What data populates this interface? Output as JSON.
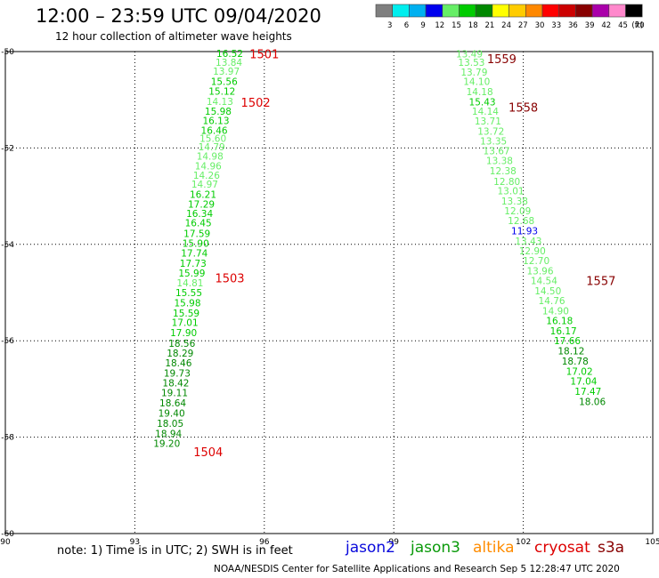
{
  "title": "12:00 – 23:59 UTC 09/04/2020",
  "subtitle": "12 hour collection of altimeter wave heights",
  "note": "note: 1) Time is in UTC; 2) SWH is in feet",
  "missions": [
    {
      "name": "jason2",
      "color": "#0a0adc"
    },
    {
      "name": "jason3",
      "color": "#0a9a0a"
    },
    {
      "name": "altika",
      "color": "#ff8c00"
    },
    {
      "name": "cryosat",
      "color": "#dd0000"
    },
    {
      "name": "s3a",
      "color": "#880000"
    }
  ],
  "footer": "NOAA/NESDIS Center for Satellite Applications and Research    Sep  5 12:28:47 UTC 2020",
  "color_scale": {
    "unit": "(ft)",
    "labels": [
      "3",
      "6",
      "9",
      "12",
      "15",
      "18",
      "21",
      "24",
      "27",
      "30",
      "33",
      "36",
      "39",
      "42",
      "45",
      "70"
    ],
    "colors": [
      "#7f7f7f",
      "#00eeee",
      "#00b0f0",
      "#0000ee",
      "#66ee66",
      "#00cc00",
      "#008800",
      "#ffff00",
      "#ffcc00",
      "#ff8800",
      "#ff0000",
      "#cc0000",
      "#880000",
      "#aa00aa",
      "#ff88cc",
      "#000000"
    ]
  },
  "chart_data": {
    "type": "scatter",
    "xlim": [
      90,
      105
    ],
    "ylim": [
      -60,
      -50
    ],
    "xticks": [
      "90",
      "93",
      "96",
      "99",
      "102",
      "105"
    ],
    "yticks": [
      "-50",
      "-52",
      "-54",
      "-56",
      "-58",
      "-60"
    ],
    "grid": true,
    "track_labels": [
      {
        "text": "1501",
        "lon": 96.0,
        "lat": -50.05,
        "color": "#dd0000"
      },
      {
        "text": "1502",
        "lon": 95.8,
        "lat": -51.05,
        "color": "#dd0000"
      },
      {
        "text": "1503",
        "lon": 95.2,
        "lat": -54.7,
        "color": "#dd0000"
      },
      {
        "text": "1504",
        "lon": 94.7,
        "lat": -58.3,
        "color": "#dd0000"
      },
      {
        "text": "1559",
        "lon": 101.5,
        "lat": -50.15,
        "color": "#880000"
      },
      {
        "text": "1558",
        "lon": 102.0,
        "lat": -51.15,
        "color": "#880000"
      },
      {
        "text": "1557",
        "lon": 103.8,
        "lat": -54.75,
        "color": "#880000"
      }
    ],
    "series": [
      {
        "name": "jason3",
        "points": [
          {
            "lon": 95.2,
            "lat": -50.04,
            "swh": "16.52",
            "color": "#00cc00"
          },
          {
            "lon": 95.18,
            "lat": -50.22,
            "swh": "13.84",
            "color": "#66ee66"
          },
          {
            "lon": 95.12,
            "lat": -50.41,
            "swh": "13.97",
            "color": "#66ee66"
          },
          {
            "lon": 95.07,
            "lat": -50.62,
            "swh": "15.56",
            "color": "#00cc00"
          },
          {
            "lon": 95.02,
            "lat": -50.82,
            "swh": "15.12",
            "color": "#00cc00"
          },
          {
            "lon": 94.97,
            "lat": -51.03,
            "swh": "14.13",
            "color": "#66ee66"
          },
          {
            "lon": 94.93,
            "lat": -51.24,
            "swh": "15.98",
            "color": "#00cc00"
          },
          {
            "lon": 94.88,
            "lat": -51.43,
            "swh": "16.13",
            "color": "#00cc00"
          },
          {
            "lon": 94.84,
            "lat": -51.63,
            "swh": "16.46",
            "color": "#00cc00"
          },
          {
            "lon": 94.81,
            "lat": -51.8,
            "swh": "15.60",
            "color": "#66ee66"
          },
          {
            "lon": 94.78,
            "lat": -51.97,
            "swh": "14.79",
            "color": "#66ee66"
          },
          {
            "lon": 94.74,
            "lat": -52.17,
            "swh": "14.98",
            "color": "#66ee66"
          },
          {
            "lon": 94.7,
            "lat": -52.37,
            "swh": "14.96",
            "color": "#66ee66"
          },
          {
            "lon": 94.66,
            "lat": -52.56,
            "swh": "14.26",
            "color": "#66ee66"
          },
          {
            "lon": 94.62,
            "lat": -52.75,
            "swh": "14.97",
            "color": "#66ee66"
          },
          {
            "lon": 94.58,
            "lat": -52.96,
            "swh": "16.21",
            "color": "#00cc00"
          },
          {
            "lon": 94.54,
            "lat": -53.16,
            "swh": "17.29",
            "color": "#00cc00"
          },
          {
            "lon": 94.5,
            "lat": -53.36,
            "swh": "16.34",
            "color": "#00cc00"
          },
          {
            "lon": 94.47,
            "lat": -53.55,
            "swh": "16.45",
            "color": "#00cc00"
          },
          {
            "lon": 94.44,
            "lat": -53.77,
            "swh": "17.59",
            "color": "#00cc00"
          },
          {
            "lon": 94.41,
            "lat": -53.98,
            "swh": "15.90",
            "color": "#00cc00"
          },
          {
            "lon": 94.38,
            "lat": -54.18,
            "swh": "17.74",
            "color": "#00cc00"
          },
          {
            "lon": 94.35,
            "lat": -54.39,
            "swh": "17.73",
            "color": "#00cc00"
          },
          {
            "lon": 94.32,
            "lat": -54.59,
            "swh": "15.99",
            "color": "#00cc00"
          },
          {
            "lon": 94.28,
            "lat": -54.8,
            "swh": "14.81",
            "color": "#66ee66"
          },
          {
            "lon": 94.25,
            "lat": -55.0,
            "swh": "15.55",
            "color": "#00cc00"
          },
          {
            "lon": 94.22,
            "lat": -55.21,
            "swh": "15.98",
            "color": "#00cc00"
          },
          {
            "lon": 94.19,
            "lat": -55.42,
            "swh": "15.59",
            "color": "#00cc00"
          },
          {
            "lon": 94.16,
            "lat": -55.62,
            "swh": "17.01",
            "color": "#00cc00"
          },
          {
            "lon": 94.13,
            "lat": -55.83,
            "swh": "17.90",
            "color": "#00cc00"
          },
          {
            "lon": 94.09,
            "lat": -56.05,
            "swh": "18.56",
            "color": "#008800"
          },
          {
            "lon": 94.05,
            "lat": -56.25,
            "swh": "18.29",
            "color": "#008800"
          },
          {
            "lon": 94.01,
            "lat": -56.46,
            "swh": "18.46",
            "color": "#008800"
          },
          {
            "lon": 93.98,
            "lat": -56.67,
            "swh": "19.73",
            "color": "#008800"
          },
          {
            "lon": 93.95,
            "lat": -56.87,
            "swh": "18.42",
            "color": "#008800"
          },
          {
            "lon": 93.92,
            "lat": -57.08,
            "swh": "19.11",
            "color": "#008800"
          },
          {
            "lon": 93.88,
            "lat": -57.29,
            "swh": "18.64",
            "color": "#008800"
          },
          {
            "lon": 93.85,
            "lat": -57.5,
            "swh": "19.40",
            "color": "#008800"
          },
          {
            "lon": 93.82,
            "lat": -57.71,
            "swh": "18.05",
            "color": "#008800"
          },
          {
            "lon": 93.78,
            "lat": -57.92,
            "swh": "18.94",
            "color": "#008800"
          },
          {
            "lon": 93.74,
            "lat": -58.13,
            "swh": "19.20",
            "color": "#008800"
          }
        ]
      },
      {
        "name": "jason3",
        "points": [
          {
            "lon": 100.75,
            "lat": -50.05,
            "swh": "13.49",
            "color": "#66ee66"
          },
          {
            "lon": 100.8,
            "lat": -50.22,
            "swh": "13.53",
            "color": "#66ee66"
          },
          {
            "lon": 100.86,
            "lat": -50.42,
            "swh": "13.79",
            "color": "#66ee66"
          },
          {
            "lon": 100.92,
            "lat": -50.62,
            "swh": "14.10",
            "color": "#66ee66"
          },
          {
            "lon": 100.99,
            "lat": -50.83,
            "swh": "14.18",
            "color": "#66ee66"
          },
          {
            "lon": 101.05,
            "lat": -51.04,
            "swh": "15.43",
            "color": "#00cc00"
          },
          {
            "lon": 101.12,
            "lat": -51.24,
            "swh": "14.14",
            "color": "#66ee66"
          },
          {
            "lon": 101.18,
            "lat": -51.44,
            "swh": "13.71",
            "color": "#66ee66"
          },
          {
            "lon": 101.25,
            "lat": -51.65,
            "swh": "13.72",
            "color": "#66ee66"
          },
          {
            "lon": 101.31,
            "lat": -51.85,
            "swh": "13.35",
            "color": "#66ee66"
          },
          {
            "lon": 101.38,
            "lat": -52.06,
            "swh": "13.67",
            "color": "#66ee66"
          },
          {
            "lon": 101.45,
            "lat": -52.26,
            "swh": "13.38",
            "color": "#66ee66"
          },
          {
            "lon": 101.53,
            "lat": -52.47,
            "swh": "12.38",
            "color": "#66ee66"
          },
          {
            "lon": 101.62,
            "lat": -52.69,
            "swh": "12.80",
            "color": "#66ee66"
          },
          {
            "lon": 101.71,
            "lat": -52.89,
            "swh": "13.01",
            "color": "#66ee66"
          },
          {
            "lon": 101.8,
            "lat": -53.1,
            "swh": "13.38",
            "color": "#66ee66"
          },
          {
            "lon": 101.87,
            "lat": -53.3,
            "swh": "12.09",
            "color": "#66ee66"
          },
          {
            "lon": 101.95,
            "lat": -53.51,
            "swh": "12.68",
            "color": "#66ee66"
          },
          {
            "lon": 102.03,
            "lat": -53.72,
            "swh": "11.93",
            "color": "#0000ee"
          },
          {
            "lon": 102.12,
            "lat": -53.93,
            "swh": "13.43",
            "color": "#66ee66"
          },
          {
            "lon": 102.21,
            "lat": -54.13,
            "swh": "12.90",
            "color": "#66ee66"
          },
          {
            "lon": 102.3,
            "lat": -54.34,
            "swh": "12.70",
            "color": "#66ee66"
          },
          {
            "lon": 102.39,
            "lat": -54.55,
            "swh": "13.96",
            "color": "#66ee66"
          },
          {
            "lon": 102.48,
            "lat": -54.75,
            "swh": "14.54",
            "color": "#66ee66"
          },
          {
            "lon": 102.57,
            "lat": -54.96,
            "swh": "14.50",
            "color": "#66ee66"
          },
          {
            "lon": 102.66,
            "lat": -55.17,
            "swh": "14.76",
            "color": "#66ee66"
          },
          {
            "lon": 102.75,
            "lat": -55.38,
            "swh": "14.90",
            "color": "#66ee66"
          },
          {
            "lon": 102.84,
            "lat": -55.58,
            "swh": "16.18",
            "color": "#00cc00"
          },
          {
            "lon": 102.93,
            "lat": -55.79,
            "swh": "16.17",
            "color": "#00cc00"
          },
          {
            "lon": 103.02,
            "lat": -56.0,
            "swh": "17.66",
            "color": "#00cc00"
          },
          {
            "lon": 103.11,
            "lat": -56.21,
            "swh": "18.12",
            "color": "#008800"
          },
          {
            "lon": 103.2,
            "lat": -56.42,
            "swh": "18.78",
            "color": "#008800"
          },
          {
            "lon": 103.3,
            "lat": -56.63,
            "swh": "17.02",
            "color": "#00cc00"
          },
          {
            "lon": 103.4,
            "lat": -56.84,
            "swh": "17.04",
            "color": "#00cc00"
          },
          {
            "lon": 103.5,
            "lat": -57.05,
            "swh": "17.47",
            "color": "#00cc00"
          },
          {
            "lon": 103.6,
            "lat": -57.26,
            "swh": "18.06",
            "color": "#008800"
          }
        ]
      }
    ]
  }
}
